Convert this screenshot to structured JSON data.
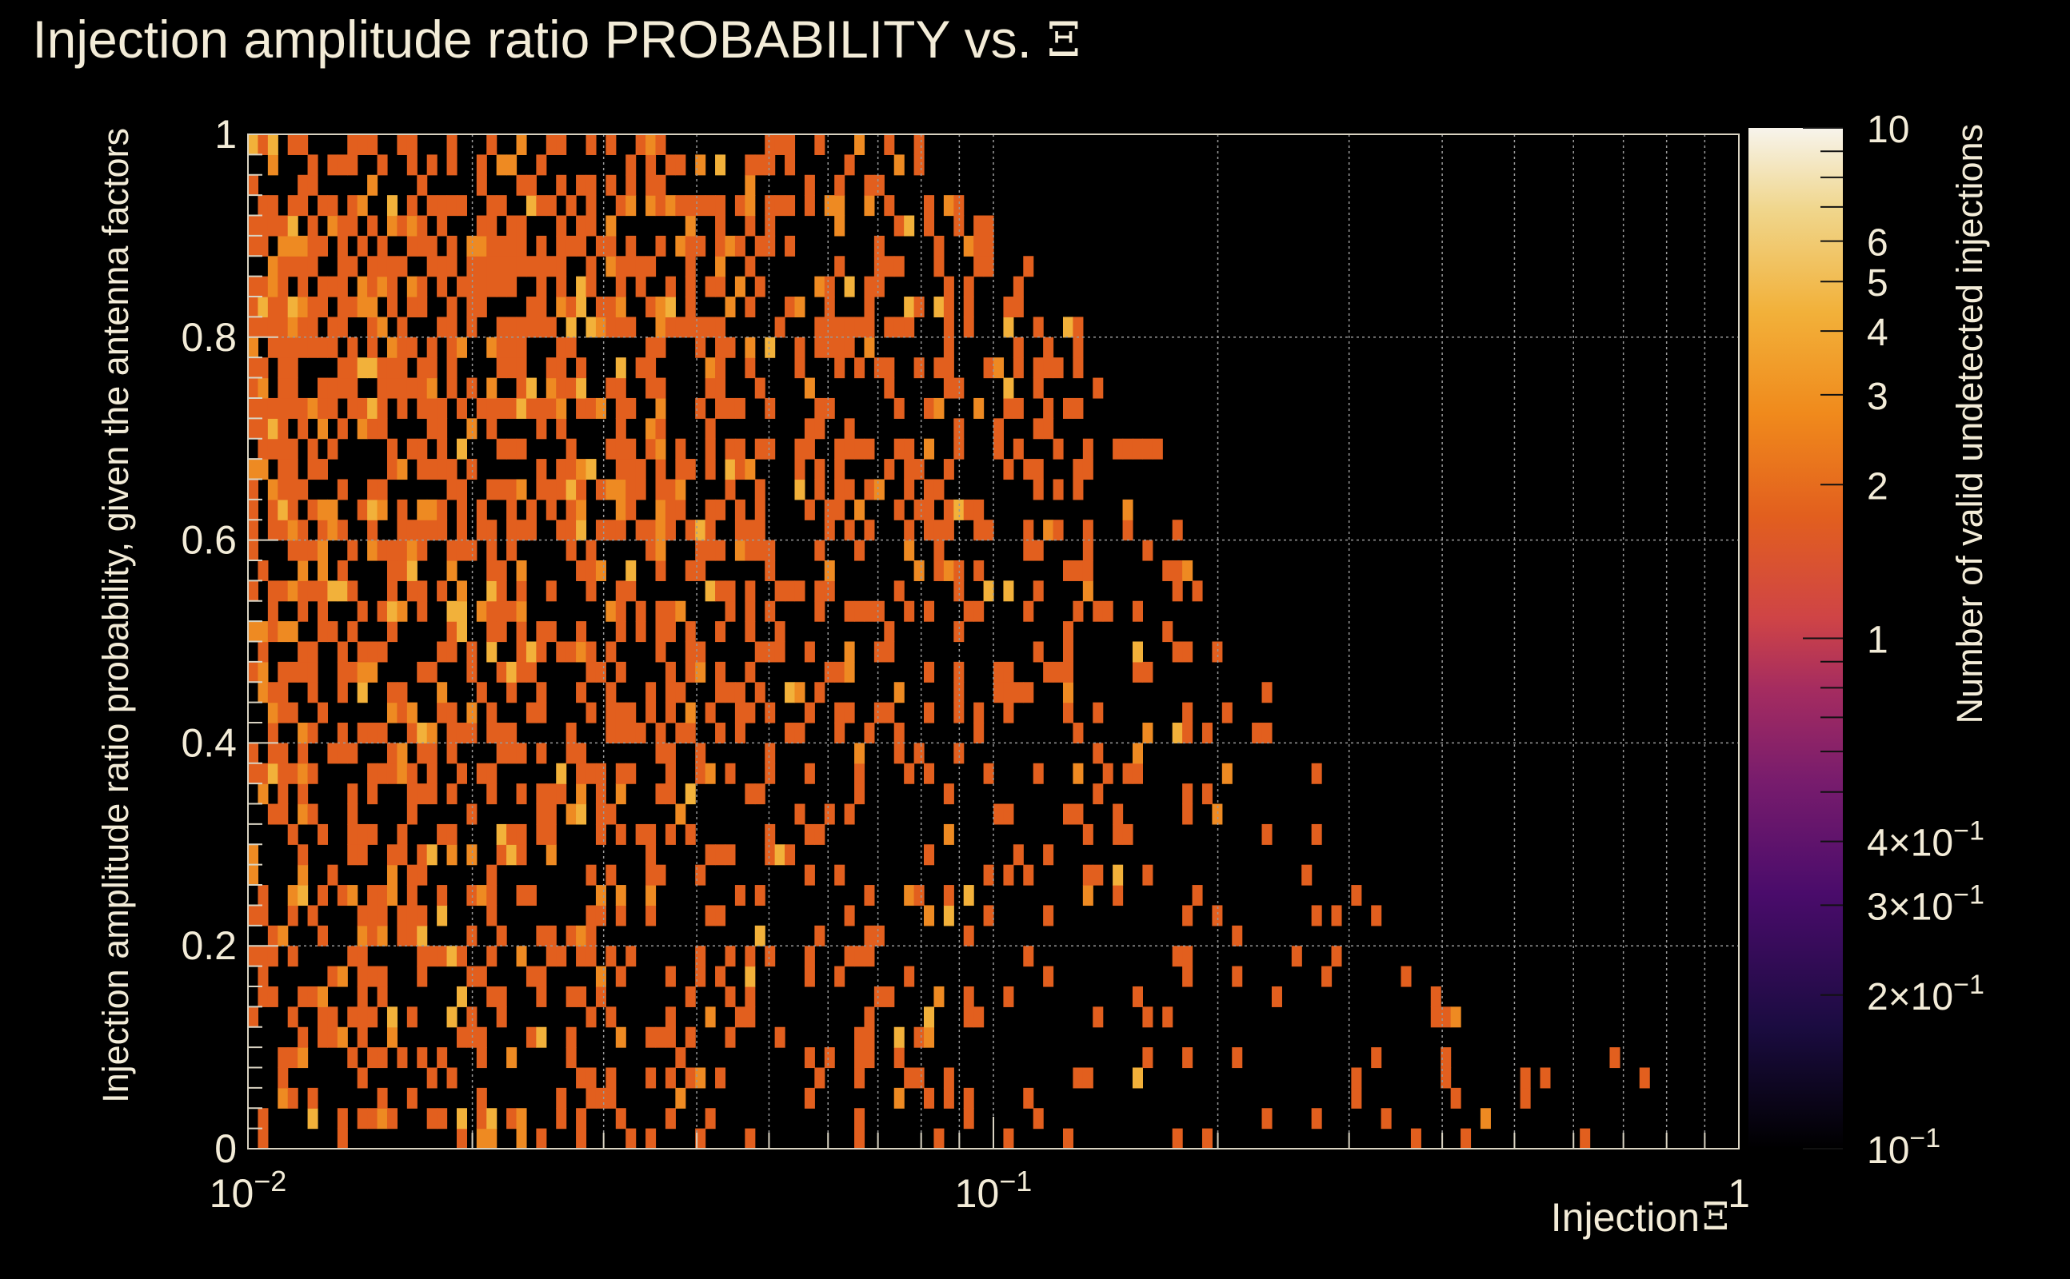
{
  "chart_data": {
    "type": "heatmap",
    "title": "Injection amplitude ratio PROBABILITY vs.",
    "title_symbol": "Ξ",
    "xlabel": "Injection",
    "xlabel_symbol": "Ξ",
    "ylabel": "Injection amplitude ratio probability, given the antenna factors",
    "zlabel": "Number of valid undetected injections",
    "x_scale": "log",
    "xlim": [
      0.01,
      1
    ],
    "ylim": [
      0,
      1
    ],
    "z_scale": "log",
    "zlim": [
      0.1,
      10
    ],
    "grid": true,
    "x_ticks": [
      {
        "value": 0.01,
        "mantissa": "10",
        "exp": "−2"
      },
      {
        "value": 0.1,
        "mantissa": "10",
        "exp": "−1"
      },
      {
        "value": 1,
        "mantissa": "1",
        "exp": ""
      }
    ],
    "y_ticks": [
      {
        "value": 0,
        "label": "0"
      },
      {
        "value": 0.2,
        "label": "0.2"
      },
      {
        "value": 0.4,
        "label": "0.4"
      },
      {
        "value": 0.6,
        "label": "0.6"
      },
      {
        "value": 0.8,
        "label": "0.8"
      },
      {
        "value": 1,
        "label": "1"
      }
    ],
    "colorbar_ticks": [
      {
        "value": 10,
        "label": "10"
      },
      {
        "value": 6,
        "label": "6"
      },
      {
        "value": 5,
        "label": "5"
      },
      {
        "value": 4,
        "label": "4"
      },
      {
        "value": 3,
        "label": "3"
      },
      {
        "value": 2,
        "label": "2"
      },
      {
        "value": 1,
        "label": "1"
      },
      {
        "value": 0.4,
        "label": "4×10",
        "exp": "−1"
      },
      {
        "value": 0.3,
        "label": "3×10",
        "exp": "−1"
      },
      {
        "value": 0.2,
        "label": "2×10",
        "exp": "−1"
      },
      {
        "value": 0.1,
        "label": "10",
        "exp": "−1"
      }
    ],
    "colormap": [
      "#000000",
      "#1b0c41",
      "#4a0c6b",
      "#781c6d",
      "#a52c60",
      "#cf4446",
      "#e25f1e",
      "#f08a1c",
      "#f2b13a",
      "#f0d68c",
      "#f7f4ec"
    ],
    "bins": {
      "nx": 150,
      "ny": 50,
      "empty_value": 0,
      "note_values": "counts per bin, typical values 1, 2 or 3",
      "density_envelope": [
        {
          "x": 0.01,
          "ymax": 1.0
        },
        {
          "x": 0.08,
          "ymax": 1.0
        },
        {
          "x": 0.13,
          "ymax": 0.82
        },
        {
          "x": 0.2,
          "ymax": 0.6
        },
        {
          "x": 0.3,
          "ymax": 0.3
        },
        {
          "x": 0.5,
          "ymax": 0.16
        },
        {
          "x": 0.75,
          "ymax": 0.08
        }
      ]
    }
  }
}
